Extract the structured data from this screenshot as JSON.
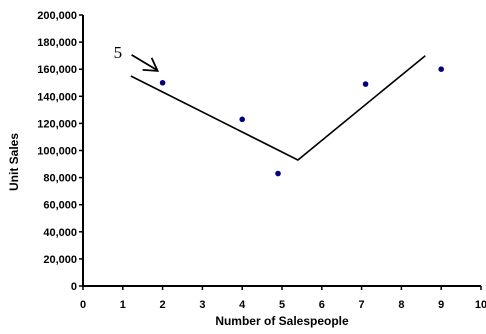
{
  "chart_data": {
    "type": "scatter",
    "title": "",
    "xlabel": "Number of Salespeople",
    "ylabel": "Unit Sales",
    "xlim": [
      0,
      10
    ],
    "ylim": [
      0,
      200000
    ],
    "x_ticks": [
      "0",
      "1",
      "2",
      "3",
      "4",
      "5",
      "6",
      "7",
      "8",
      "9",
      "10"
    ],
    "y_ticks": [
      "0",
      "20,000",
      "40,000",
      "60,000",
      "80,000",
      "100,000",
      "120,000",
      "140,000",
      "160,000",
      "180,000",
      "200,000"
    ],
    "grid": false,
    "legend": "none",
    "series": [
      {
        "type": "scatter",
        "color": "#00007f",
        "points": [
          {
            "x": 2.0,
            "y": 150000
          },
          {
            "x": 4.0,
            "y": 123000
          },
          {
            "x": 4.9,
            "y": 83000
          },
          {
            "x": 7.1,
            "y": 149000
          },
          {
            "x": 9.0,
            "y": 160000
          }
        ]
      },
      {
        "type": "line",
        "color": "#000000",
        "points": [
          {
            "x": 1.2,
            "y": 155000
          },
          {
            "x": 5.4,
            "y": 93000
          },
          {
            "x": 8.6,
            "y": 170000
          }
        ]
      }
    ],
    "annotations": [
      {
        "text": "5",
        "kind": "arrow-label",
        "points_to": {
          "x": 1.9,
          "y": 158000
        }
      }
    ]
  }
}
